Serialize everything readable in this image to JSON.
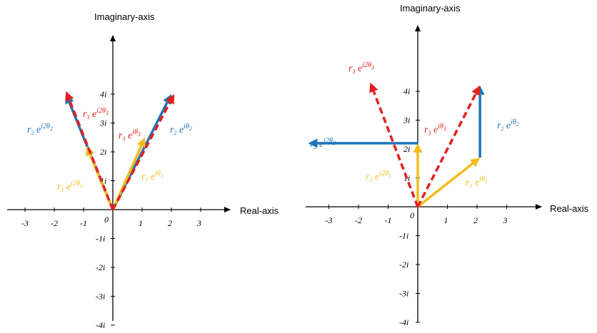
{
  "colors": {
    "blue": "#1f74b8",
    "yellow": "#f2bd1a",
    "red": "#e3201f",
    "axis": "#000000"
  },
  "left_panel": {
    "y_axis_title": "Imaginary-axis",
    "x_axis_title": "Real-axis",
    "x_ticks": [
      "-3",
      "-2",
      "-1",
      "1",
      "2",
      "3"
    ],
    "y_ticks": [
      "4i",
      "3i",
      "2i",
      "1i",
      "-1i",
      "-2i",
      "-3i",
      "-4i"
    ],
    "origin": "0",
    "vectors": [
      {
        "name": "r2-e-i-theta2",
        "color": "blue",
        "style": "solid",
        "r": "r",
        "r_sub": "2",
        "exp": "iθ",
        "exp_sub": "2",
        "from": [
          0,
          0
        ],
        "to": [
          2,
          4
        ]
      },
      {
        "name": "r2-e-i2-theta2",
        "color": "blue",
        "style": "solid",
        "r": "r",
        "r_sub": "2",
        "exp": "i2θ",
        "exp_sub": "2",
        "from": [
          0,
          0
        ],
        "to": [
          -1.6,
          4
        ]
      },
      {
        "name": "r1-e-i-theta1",
        "color": "yellow",
        "style": "solid",
        "r": "r",
        "r_sub": "1",
        "exp": "iθ",
        "exp_sub": "1",
        "from": [
          0,
          0
        ],
        "to": [
          1.1,
          2.5
        ]
      },
      {
        "name": "r1-e-i2-theta1",
        "color": "yellow",
        "style": "solid",
        "r": "r",
        "r_sub": "1",
        "exp": "i2θ",
        "exp_sub": "1",
        "from": [
          0,
          0
        ],
        "to": [
          -0.9,
          2.2
        ]
      },
      {
        "name": "r3-e-i-theta3",
        "color": "red",
        "style": "dashed",
        "r": "r",
        "r_sub": "3",
        "exp": "iθ",
        "exp_sub": "3",
        "from": [
          0,
          0
        ],
        "to": [
          2.1,
          4
        ]
      },
      {
        "name": "r3-e-i2-theta3",
        "color": "red",
        "style": "dashed",
        "r": "r",
        "r_sub": "3",
        "exp": "i2θ",
        "exp_sub": "3",
        "from": [
          0,
          0
        ],
        "to": [
          -1.6,
          4.1
        ]
      }
    ]
  },
  "right_panel": {
    "y_axis_title": "Imaginary-axis",
    "x_axis_title": "Real-axis",
    "x_ticks": [
      "-3",
      "-2",
      "-1",
      "1",
      "2",
      "3"
    ],
    "y_ticks": [
      "4i",
      "3i",
      "2i",
      "1i",
      "-1i",
      "-2i",
      "-3i",
      "-4i"
    ],
    "origin": "0",
    "vectors": [
      {
        "name": "r1-e-i-theta1",
        "color": "yellow",
        "style": "solid",
        "r": "r",
        "r_sub": "1",
        "exp": "iθ",
        "exp_sub": "1",
        "from": [
          0,
          0
        ],
        "to": [
          2.1,
          1.7
        ]
      },
      {
        "name": "r2-e-i-theta2",
        "color": "blue",
        "style": "solid",
        "r": "r",
        "r_sub": "2",
        "exp": "iθ",
        "exp_sub": "2",
        "from": [
          2.1,
          1.7
        ],
        "to": [
          2.1,
          4.2
        ]
      },
      {
        "name": "r1-e-i2-theta1",
        "color": "yellow",
        "style": "solid",
        "r": "r",
        "r_sub": "1",
        "exp": "i2θ",
        "exp_sub": "1",
        "from": [
          0,
          0
        ],
        "to": [
          0,
          2.2
        ]
      },
      {
        "name": "r2-e-i2-theta2",
        "color": "blue",
        "style": "solid",
        "r": "r",
        "r_sub": "2",
        "exp": "i2θ",
        "exp_sub": "2",
        "from": [
          0,
          2.2
        ],
        "to": [
          -3.7,
          2.2
        ]
      },
      {
        "name": "r3-e-i-theta3",
        "color": "red",
        "style": "dashed",
        "r": "r",
        "r_sub": "3",
        "exp": "iθ",
        "exp_sub": "3",
        "from": [
          0,
          0
        ],
        "to": [
          2.1,
          4.2
        ]
      },
      {
        "name": "r3-e-i2-theta3",
        "color": "red",
        "style": "dashed",
        "r": "r",
        "r_sub": "3",
        "exp": "i2θ",
        "exp_sub": "3",
        "from": [
          0,
          0
        ],
        "to": [
          -1.6,
          4.3
        ]
      }
    ]
  }
}
